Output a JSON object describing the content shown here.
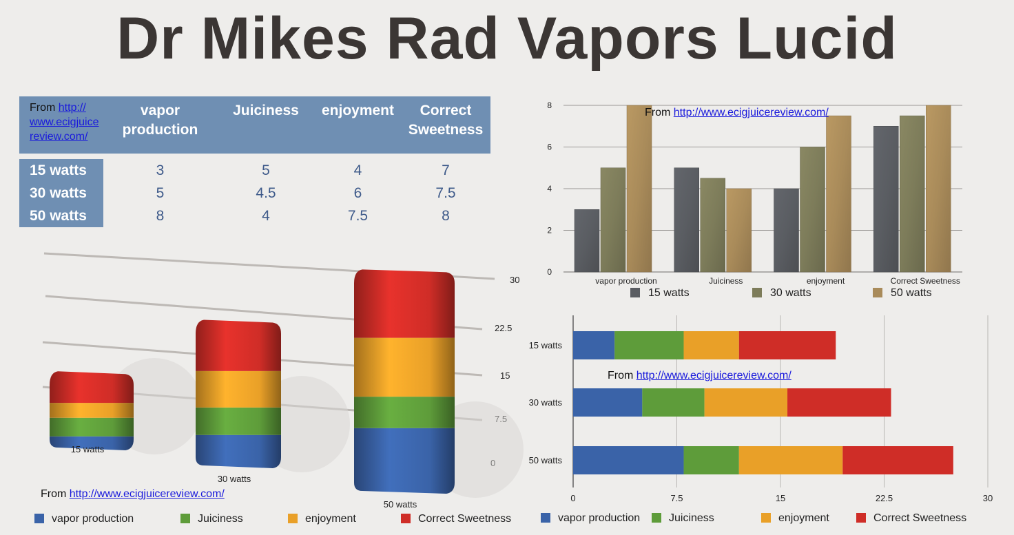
{
  "title": "Dr Mikes Rad Vapors Lucid",
  "source_prefix": "From ",
  "source_url": "http://www.ecigjuicereview.com/",
  "table": {
    "source_line1": "http://",
    "source_line2": "www.ecigjuice",
    "source_line3": "review.com/",
    "columns": [
      "vapor production",
      "Juiciness",
      "enjoyment",
      "Correct Sweetness"
    ],
    "col_lines": [
      [
        "vapor",
        "production"
      ],
      [
        "Juiciness",
        ""
      ],
      [
        "enjoyment",
        ""
      ],
      [
        "Correct",
        "Sweetness"
      ]
    ],
    "rows": [
      {
        "label": "15 watts",
        "values": [
          "3",
          "5",
          "4",
          "7"
        ]
      },
      {
        "label": "30 watts",
        "values": [
          "5",
          "4.5",
          "6",
          "7.5"
        ]
      },
      {
        "label": "50 watts",
        "values": [
          "8",
          "4",
          "7.5",
          "8"
        ]
      }
    ]
  },
  "colors": {
    "vapor production": "#3a63a8",
    "Juiciness": "#5e9c3a",
    "enjoyment": "#e9a028",
    "Correct Sweetness": "#cf2d27",
    "15 watts": "#5a5d62",
    "30 watts": "#7d7c5a",
    "50 watts": "#a98b5a"
  },
  "chart_data": [
    {
      "type": "bar",
      "subtype": "stacked-3d",
      "categories": [
        "15 watts",
        "30 watts",
        "50 watts"
      ],
      "series": [
        {
          "name": "vapor production",
          "values": [
            3,
            5,
            8
          ]
        },
        {
          "name": "Juiciness",
          "values": [
            5,
            4.5,
            4
          ]
        },
        {
          "name": "enjoyment",
          "values": [
            4,
            6,
            7.5
          ]
        },
        {
          "name": "Correct Sweetness",
          "values": [
            7,
            7.5,
            8
          ]
        }
      ],
      "yticks": [
        "0",
        "7.5",
        "15",
        "22.5",
        "30"
      ],
      "ylim": [
        0,
        30
      ],
      "grid": true,
      "legend": "bottom"
    },
    {
      "type": "bar",
      "categories": [
        "vapor production",
        "Juiciness",
        "enjoyment",
        "Correct Sweetness"
      ],
      "series": [
        {
          "name": "15 watts",
          "values": [
            3,
            5,
            4,
            7
          ]
        },
        {
          "name": "30 watts",
          "values": [
            5,
            4.5,
            6,
            7.5
          ]
        },
        {
          "name": "50 watts",
          "values": [
            8,
            4,
            7.5,
            8
          ]
        }
      ],
      "yticks": [
        "0",
        "2",
        "4",
        "6",
        "8"
      ],
      "ylim": [
        0,
        8
      ],
      "grid": true,
      "legend": "bottom"
    },
    {
      "type": "bar",
      "subtype": "stacked-horizontal",
      "categories": [
        "15 watts",
        "30 watts",
        "50 watts"
      ],
      "series": [
        {
          "name": "vapor production",
          "values": [
            3,
            5,
            8
          ]
        },
        {
          "name": "Juiciness",
          "values": [
            5,
            4.5,
            4
          ]
        },
        {
          "name": "enjoyment",
          "values": [
            4,
            6,
            7.5
          ]
        },
        {
          "name": "Correct Sweetness",
          "values": [
            7,
            7.5,
            8
          ]
        }
      ],
      "xticks": [
        "0",
        "7.5",
        "15",
        "22.5",
        "30"
      ],
      "xlim": [
        0,
        30
      ],
      "grid": true,
      "legend": "bottom"
    }
  ]
}
